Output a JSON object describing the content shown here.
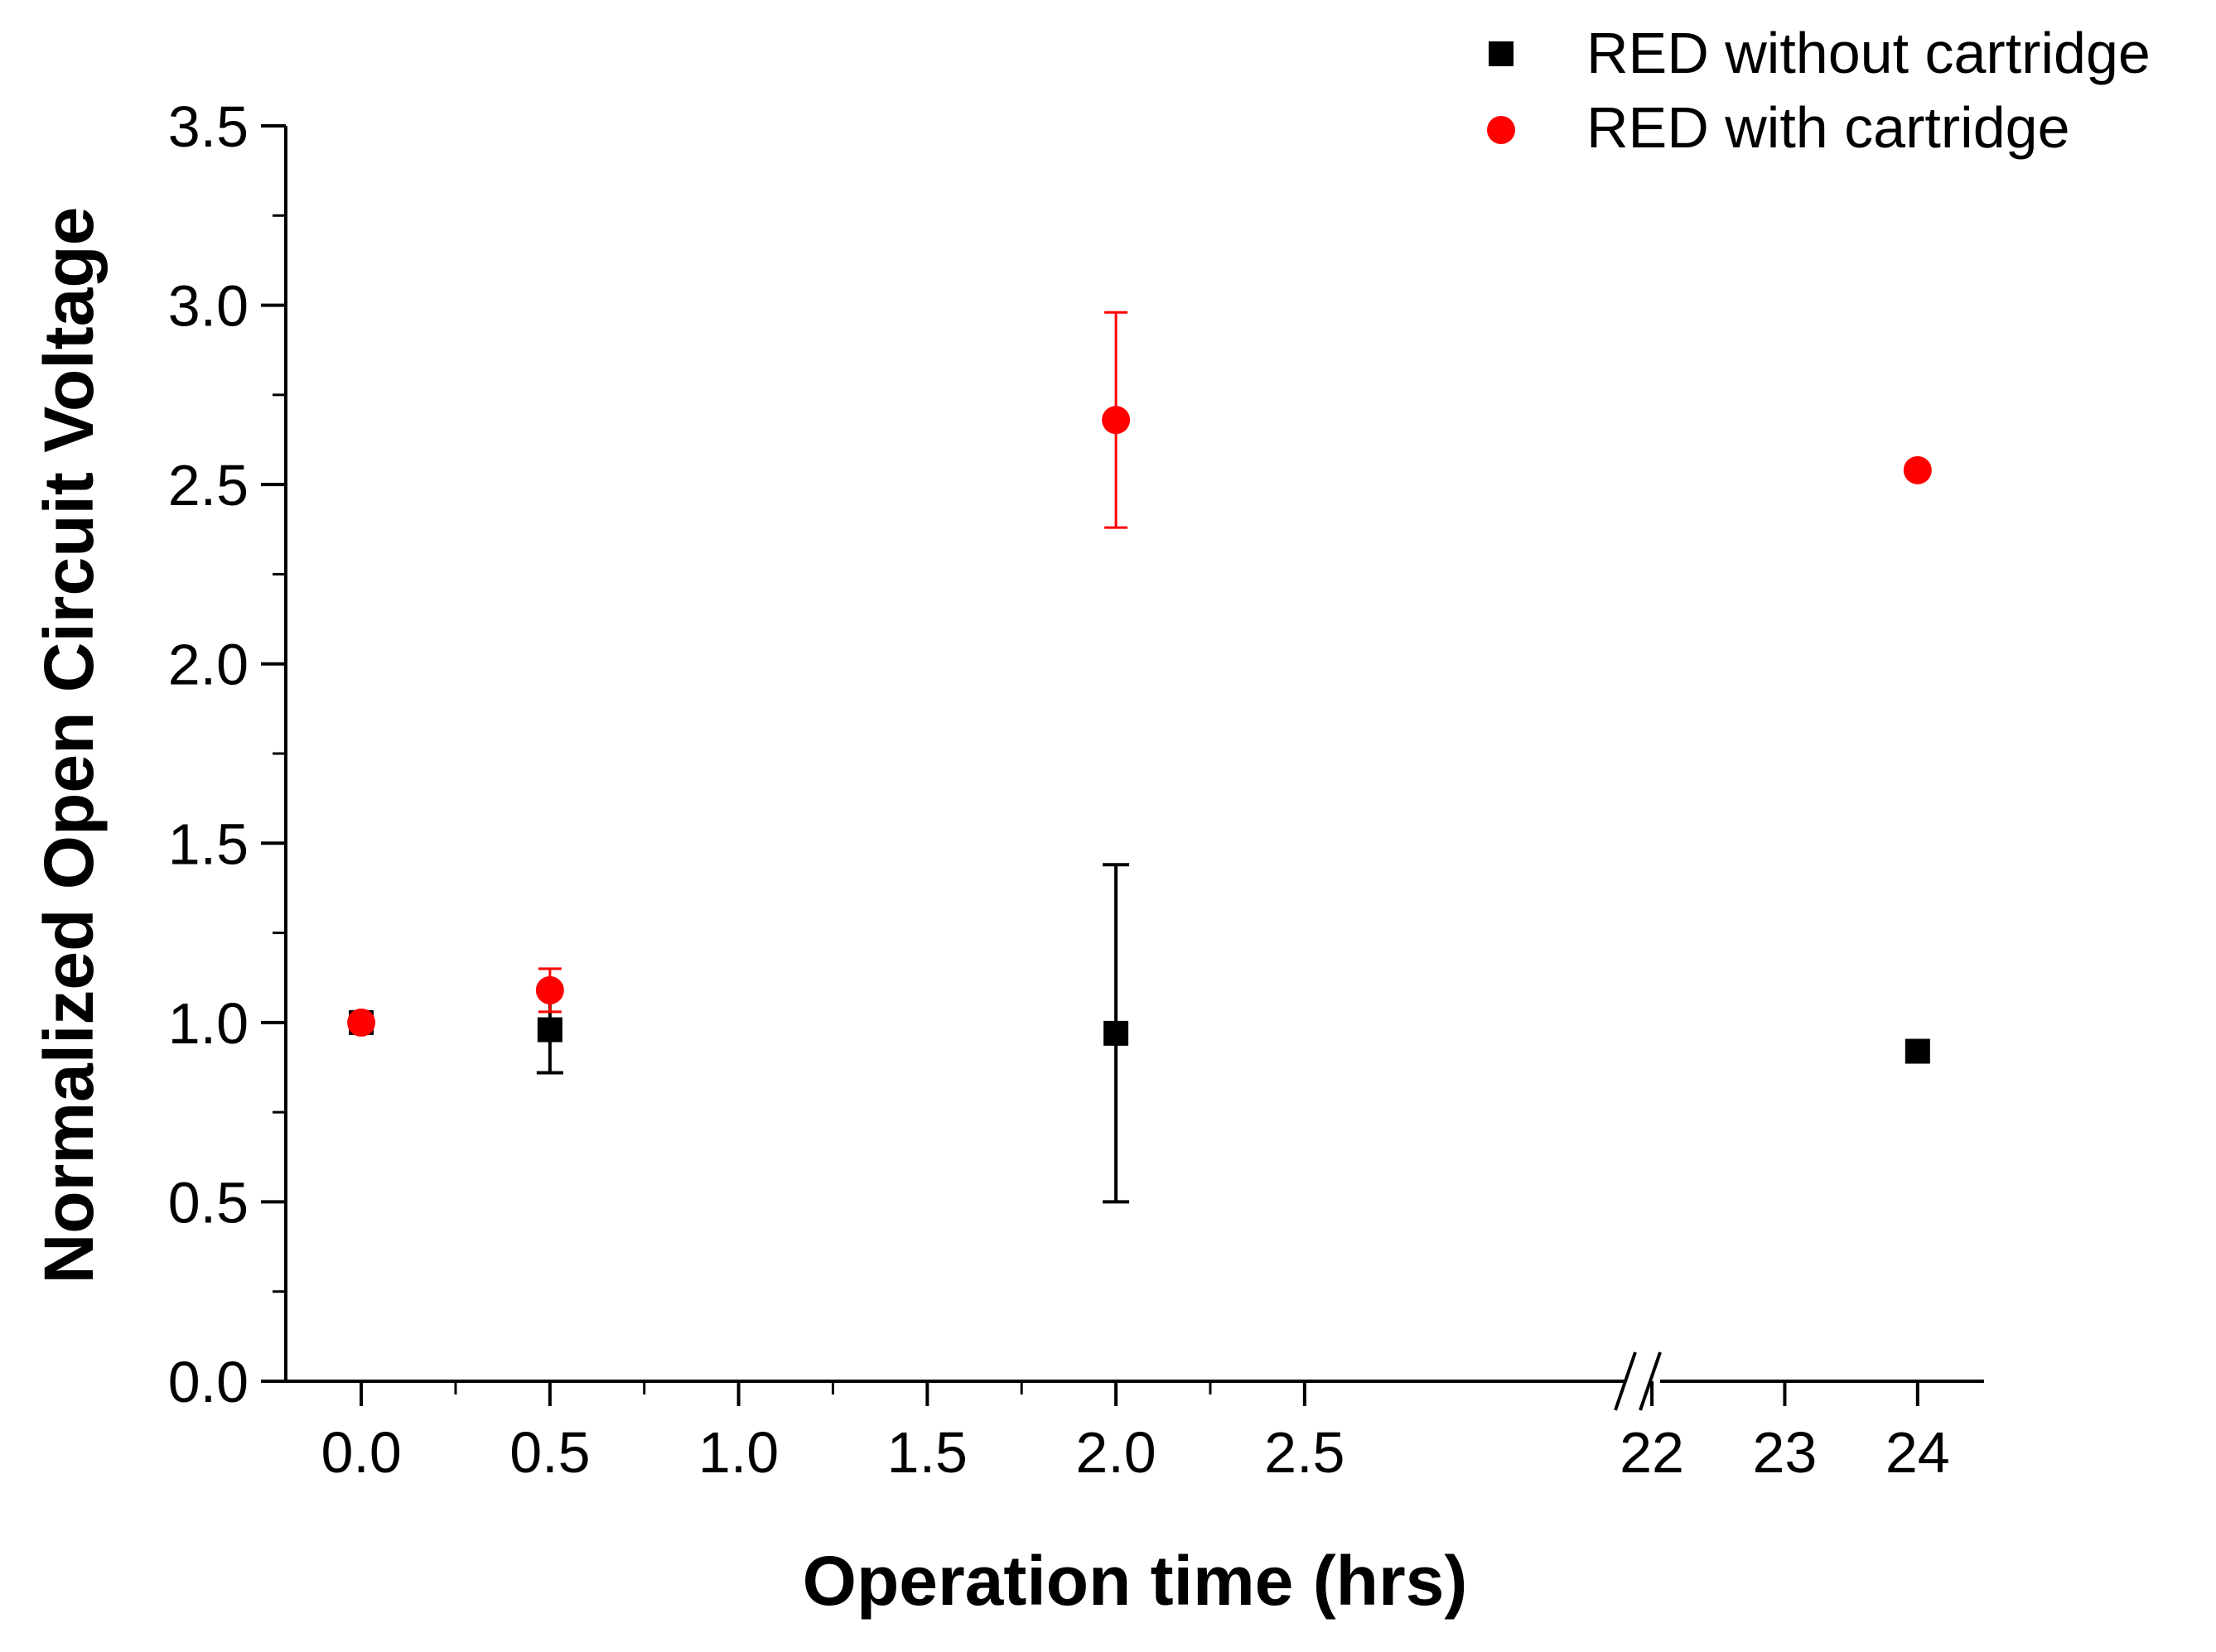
{
  "chart_data": {
    "type": "scatter",
    "title": "",
    "xlabel": "Operation time (hrs)",
    "ylabel": "Normalized Open Circuit Voltage",
    "ylim": [
      0,
      3.5
    ],
    "y_ticks": [
      "0.0",
      "0.5",
      "1.0",
      "1.5",
      "2.0",
      "2.5",
      "3.0",
      "3.5"
    ],
    "x_segments": [
      {
        "range": [
          -0.2,
          3.35
        ],
        "ticks": [
          "0.0",
          "0.5",
          "1.0",
          "1.5",
          "2.0",
          "2.5"
        ]
      },
      {
        "range": [
          21.8,
          24.5
        ],
        "ticks": [
          "22",
          "23",
          "24"
        ]
      }
    ],
    "axis_break_after": 2.5,
    "grid": false,
    "legend_position": "top-right",
    "series": [
      {
        "name": "RED without cartridge",
        "marker": "square",
        "color": "#000000",
        "x": [
          0,
          0.5,
          2.0,
          24
        ],
        "y": [
          1.0,
          0.98,
          0.97,
          0.92
        ],
        "yerr": [
          0.0,
          0.12,
          0.47,
          0.0
        ]
      },
      {
        "name": "RED with cartridge",
        "marker": "circle",
        "color": "#ff0000",
        "x": [
          0,
          0.5,
          2.0,
          24
        ],
        "y": [
          1.0,
          1.09,
          2.68,
          2.54
        ],
        "yerr": [
          0.0,
          0.06,
          0.3,
          0.0
        ]
      }
    ]
  }
}
